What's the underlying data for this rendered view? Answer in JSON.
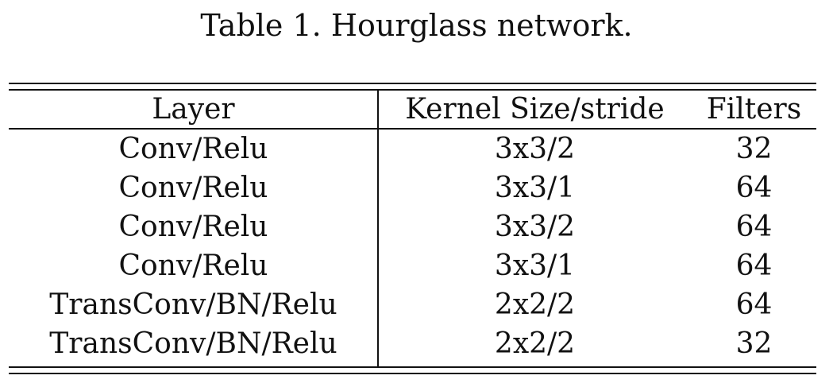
{
  "caption": "Table 1. Hourglass network.",
  "table": {
    "headers": [
      "Layer",
      "Kernel Size/stride",
      "Filters"
    ],
    "rows": [
      [
        "Conv/Relu",
        "3x3/2",
        "32"
      ],
      [
        "Conv/Relu",
        "3x3/1",
        "64"
      ],
      [
        "Conv/Relu",
        "3x3/2",
        "64"
      ],
      [
        "Conv/Relu",
        "3x3/1",
        "64"
      ],
      [
        "TransConv/BN/Relu",
        "2x2/2",
        "64"
      ],
      [
        "TransConv/BN/Relu",
        "2x2/2",
        "32"
      ]
    ]
  }
}
